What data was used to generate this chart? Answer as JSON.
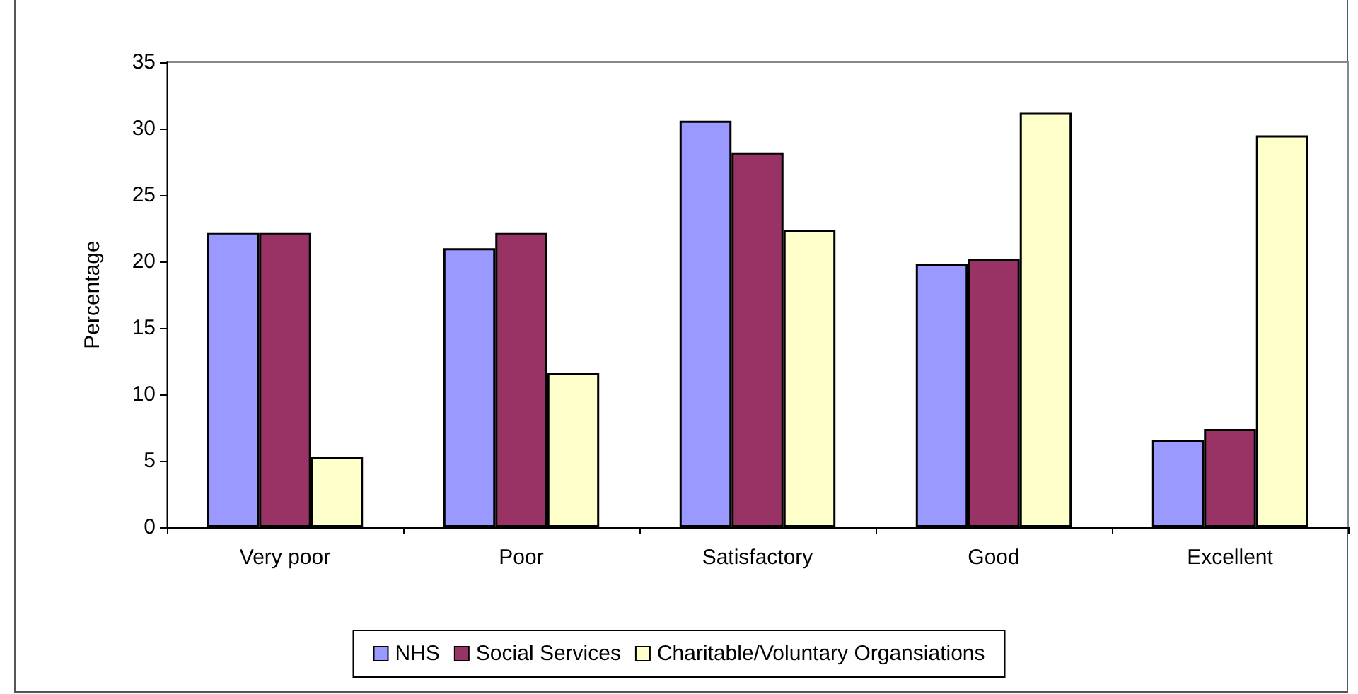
{
  "chart_data": {
    "type": "bar",
    "ylabel": "Percentage",
    "categories": [
      "Very poor",
      "Poor",
      "Satisfactory",
      "Good",
      "Excellent"
    ],
    "series": [
      {
        "name": "NHS",
        "color": "#9999ff",
        "values": [
          22.2,
          21.0,
          30.6,
          19.8,
          6.6
        ]
      },
      {
        "name": "Social Services",
        "color": "#993366",
        "values": [
          22.2,
          22.2,
          28.2,
          20.2,
          7.4
        ]
      },
      {
        "name": "Charitable/Voluntary Organsiations",
        "color": "#ffffcc",
        "values": [
          5.3,
          11.6,
          22.4,
          31.2,
          29.5
        ]
      }
    ],
    "ylim": [
      0,
      35
    ],
    "yticks": [
      0,
      5,
      10,
      15,
      20,
      25,
      30,
      35
    ],
    "grid": false,
    "legend": "bottom"
  }
}
